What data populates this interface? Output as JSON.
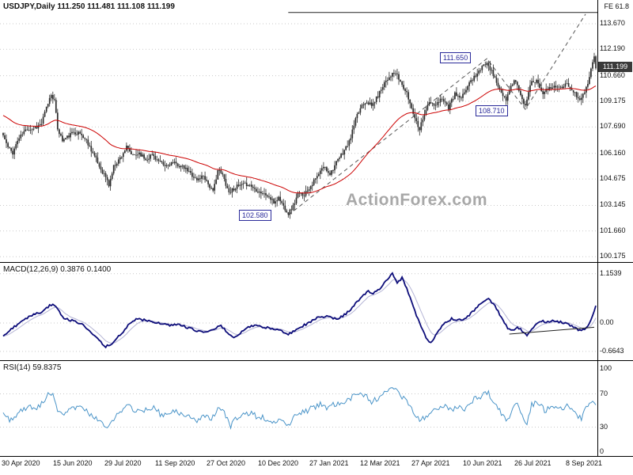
{
  "header": {
    "text": "USDJPY,Daily 111.250 111.481 111.108 111.199"
  },
  "annotations": {
    "fe_label": "FE 61.8",
    "peak_label": "111.650",
    "aug_low_label": "108.710",
    "jan_low_label": "102.580",
    "current_price": "111.199",
    "watermark": "ActionForex.com"
  },
  "indicators": {
    "macd_label": "MACD(12,26,9) 0.3876 0.1400",
    "rsi_label": "RSI(14) 59.8375"
  },
  "axes": {
    "price": [
      "113.670",
      "112.190",
      "110.660",
      "109.175",
      "107.690",
      "106.160",
      "104.675",
      "103.145",
      "101.660",
      "100.175"
    ],
    "macd": [
      "1.1539",
      "0.00",
      "-0.6643"
    ],
    "rsi": [
      "100",
      "70",
      "30",
      "0"
    ],
    "dates": [
      "30 Apr 2020",
      "15 Jun 2020",
      "29 Jul 2020",
      "11 Sep 2020",
      "27 Oct 2020",
      "10 Dec 2020",
      "27 Jan 2021",
      "12 Mar 2021",
      "27 Apr 2021",
      "10 Jun 2021",
      "26 Jul 2021",
      "8 Sep 2021"
    ]
  },
  "colors": {
    "candle": "#2b2b2b",
    "ma": "#cc0000",
    "macd_main": "#0d0d7a",
    "macd_signal": "#b5b5d5",
    "rsi_line": "#4a94c8",
    "grid": "#c9c9c9",
    "annotation": "#2a2a9a",
    "price_tag_bg": "#3a3a3a",
    "watermark": "#a8a8a8"
  },
  "chart_data": {
    "type": "candlestick",
    "title": "USDJPY Daily with MACD(12,26,9) and RSI(14)",
    "bars": 371,
    "x_tick_bars": [
      0,
      32,
      64,
      96,
      128,
      160,
      192,
      224,
      256,
      288,
      320,
      352
    ],
    "price_range": [
      100.175,
      113.67
    ],
    "ohlc_current": {
      "open": 111.25,
      "high": 111.481,
      "low": 111.108,
      "close": 111.199
    },
    "key_points": {
      "jan_low": {
        "bar": 178,
        "price": 102.58
      },
      "jul_high": {
        "bar": 302,
        "price": 111.65
      },
      "aug_low": {
        "bar": 326,
        "price": 108.71
      },
      "fe_level": 114.32,
      "fib_extension": "61.8"
    },
    "close_anchors": [
      [
        0,
        107.2
      ],
      [
        3,
        106.5
      ],
      [
        6,
        106.2
      ],
      [
        9,
        106.9
      ],
      [
        12,
        107.3
      ],
      [
        15,
        107.6
      ],
      [
        18,
        107.6
      ],
      [
        21,
        107.7
      ],
      [
        24,
        107.9
      ],
      [
        27,
        108.8
      ],
      [
        30,
        109.6
      ],
      [
        32,
        109.2
      ],
      [
        34,
        107.6
      ],
      [
        37,
        106.9
      ],
      [
        40,
        107.1
      ],
      [
        44,
        107.4
      ],
      [
        48,
        107.3
      ],
      [
        52,
        106.9
      ],
      [
        56,
        106.2
      ],
      [
        60,
        105.4
      ],
      [
        64,
        104.8
      ],
      [
        66,
        104.3
      ],
      [
        69,
        105.4
      ],
      [
        73,
        105.9
      ],
      [
        77,
        106.5
      ],
      [
        81,
        106.0
      ],
      [
        85,
        106.2
      ],
      [
        89,
        105.8
      ],
      [
        93,
        106.1
      ],
      [
        97,
        105.7
      ],
      [
        101,
        105.4
      ],
      [
        105,
        105.6
      ],
      [
        109,
        105.5
      ],
      [
        113,
        105.3
      ],
      [
        117,
        105.0
      ],
      [
        121,
        104.6
      ],
      [
        125,
        104.9
      ],
      [
        128,
        104.4
      ],
      [
        131,
        103.9
      ],
      [
        134,
        105.2
      ],
      [
        137,
        104.9
      ],
      [
        141,
        103.9
      ],
      [
        145,
        104.2
      ],
      [
        149,
        104.3
      ],
      [
        153,
        104.4
      ],
      [
        157,
        104.1
      ],
      [
        161,
        103.9
      ],
      [
        165,
        103.7
      ],
      [
        169,
        103.3
      ],
      [
        172,
        103.6
      ],
      [
        175,
        103.1
      ],
      [
        178,
        102.7
      ],
      [
        181,
        103.1
      ],
      [
        184,
        103.8
      ],
      [
        188,
        103.8
      ],
      [
        192,
        104.3
      ],
      [
        196,
        104.8
      ],
      [
        200,
        105.4
      ],
      [
        204,
        105.0
      ],
      [
        208,
        105.6
      ],
      [
        212,
        106.2
      ],
      [
        216,
        106.8
      ],
      [
        220,
        108.1
      ],
      [
        224,
        109.0
      ],
      [
        227,
        109.2
      ],
      [
        230,
        108.9
      ],
      [
        234,
        109.5
      ],
      [
        238,
        110.3
      ],
      [
        242,
        110.7
      ],
      [
        245,
        110.8
      ],
      [
        248,
        110.3
      ],
      [
        252,
        109.6
      ],
      [
        255,
        108.8
      ],
      [
        258,
        108.0
      ],
      [
        260,
        107.6
      ],
      [
        263,
        108.5
      ],
      [
        266,
        109.1
      ],
      [
        270,
        108.9
      ],
      [
        274,
        109.4
      ],
      [
        278,
        108.8
      ],
      [
        282,
        109.6
      ],
      [
        286,
        109.3
      ],
      [
        290,
        110.1
      ],
      [
        294,
        110.6
      ],
      [
        298,
        111.0
      ],
      [
        302,
        111.5
      ],
      [
        305,
        110.9
      ],
      [
        308,
        110.3
      ],
      [
        311,
        109.6
      ],
      [
        314,
        109.2
      ],
      [
        317,
        110.1
      ],
      [
        320,
        110.4
      ],
      [
        323,
        109.5
      ],
      [
        326,
        108.9
      ],
      [
        329,
        110.2
      ],
      [
        333,
        110.4
      ],
      [
        337,
        109.7
      ],
      [
        341,
        109.9
      ],
      [
        345,
        110.1
      ],
      [
        349,
        109.9
      ],
      [
        352,
        110.2
      ],
      [
        355,
        109.9
      ],
      [
        358,
        109.5
      ],
      [
        361,
        109.3
      ],
      [
        363,
        109.8
      ],
      [
        365,
        110.3
      ],
      [
        367,
        111.0
      ],
      [
        369,
        111.9
      ],
      [
        370,
        111.2
      ]
    ],
    "macd": {
      "current": 0.3876,
      "signal": 0.14,
      "max": 1.1539,
      "min": -0.6643,
      "trendline": {
        "bar1": 316,
        "v1": -0.26,
        "bar2": 369,
        "v2": -0.1
      },
      "anchors": [
        [
          0,
          -0.3
        ],
        [
          6,
          -0.12
        ],
        [
          12,
          0.05
        ],
        [
          18,
          0.18
        ],
        [
          24,
          0.26
        ],
        [
          28,
          0.38
        ],
        [
          31,
          0.45
        ],
        [
          34,
          0.32
        ],
        [
          38,
          0.12
        ],
        [
          44,
          0.04
        ],
        [
          50,
          -0.05
        ],
        [
          56,
          -0.28
        ],
        [
          61,
          -0.45
        ],
        [
          64,
          -0.55
        ],
        [
          68,
          -0.48
        ],
        [
          73,
          -0.28
        ],
        [
          78,
          -0.06
        ],
        [
          83,
          0.1
        ],
        [
          88,
          0.07
        ],
        [
          93,
          0.04
        ],
        [
          98,
          -0.02
        ],
        [
          104,
          -0.06
        ],
        [
          110,
          -0.03
        ],
        [
          116,
          -0.12
        ],
        [
          122,
          -0.2
        ],
        [
          128,
          -0.22
        ],
        [
          132,
          -0.12
        ],
        [
          136,
          -0.06
        ],
        [
          140,
          -0.22
        ],
        [
          143,
          -0.34
        ],
        [
          147,
          -0.26
        ],
        [
          152,
          -0.12
        ],
        [
          157,
          -0.05
        ],
        [
          162,
          -0.1
        ],
        [
          168,
          -0.13
        ],
        [
          173,
          -0.17
        ],
        [
          178,
          -0.27
        ],
        [
          183,
          -0.16
        ],
        [
          188,
          -0.05
        ],
        [
          193,
          0.06
        ],
        [
          198,
          0.16
        ],
        [
          203,
          0.14
        ],
        [
          208,
          0.1
        ],
        [
          212,
          0.16
        ],
        [
          216,
          0.28
        ],
        [
          220,
          0.45
        ],
        [
          224,
          0.62
        ],
        [
          228,
          0.74
        ],
        [
          231,
          0.68
        ],
        [
          235,
          0.8
        ],
        [
          239,
          1.0
        ],
        [
          243,
          1.15
        ],
        [
          246,
          0.95
        ],
        [
          249,
          1.05
        ],
        [
          252,
          0.82
        ],
        [
          255,
          0.48
        ],
        [
          258,
          0.18
        ],
        [
          261,
          -0.1
        ],
        [
          264,
          -0.35
        ],
        [
          267,
          -0.46
        ],
        [
          270,
          -0.3
        ],
        [
          273,
          -0.12
        ],
        [
          276,
          0.02
        ],
        [
          280,
          0.1
        ],
        [
          284,
          0.06
        ],
        [
          288,
          0.09
        ],
        [
          292,
          0.22
        ],
        [
          296,
          0.38
        ],
        [
          300,
          0.5
        ],
        [
          303,
          0.55
        ],
        [
          306,
          0.45
        ],
        [
          309,
          0.28
        ],
        [
          312,
          0.05
        ],
        [
          315,
          -0.12
        ],
        [
          318,
          -0.16
        ],
        [
          321,
          -0.1
        ],
        [
          324,
          -0.18
        ],
        [
          327,
          -0.28
        ],
        [
          330,
          -0.16
        ],
        [
          333,
          -0.04
        ],
        [
          336,
          0.04
        ],
        [
          340,
          0.02
        ],
        [
          344,
          0.06
        ],
        [
          348,
          0.02
        ],
        [
          352,
          -0.02
        ],
        [
          355,
          -0.08
        ],
        [
          358,
          -0.14
        ],
        [
          361,
          -0.18
        ],
        [
          364,
          -0.12
        ],
        [
          366,
          0.0
        ],
        [
          368,
          0.18
        ],
        [
          370,
          0.39
        ]
      ]
    },
    "rsi": {
      "current": 59.8375,
      "overbought": 70,
      "oversold": 30,
      "anchors": [
        [
          0,
          46
        ],
        [
          4,
          38
        ],
        [
          8,
          44
        ],
        [
          12,
          52
        ],
        [
          16,
          54
        ],
        [
          20,
          53
        ],
        [
          24,
          58
        ],
        [
          28,
          68
        ],
        [
          31,
          72
        ],
        [
          34,
          46
        ],
        [
          38,
          47
        ],
        [
          42,
          52
        ],
        [
          46,
          55
        ],
        [
          50,
          51
        ],
        [
          54,
          46
        ],
        [
          58,
          41
        ],
        [
          62,
          34
        ],
        [
          66,
          30
        ],
        [
          70,
          44
        ],
        [
          74,
          50
        ],
        [
          78,
          57
        ],
        [
          82,
          50
        ],
        [
          86,
          53
        ],
        [
          90,
          49
        ],
        [
          94,
          53
        ],
        [
          98,
          46
        ],
        [
          102,
          45
        ],
        [
          106,
          50
        ],
        [
          110,
          47
        ],
        [
          114,
          45
        ],
        [
          118,
          41
        ],
        [
          122,
          38
        ],
        [
          126,
          43
        ],
        [
          130,
          37
        ],
        [
          134,
          55
        ],
        [
          138,
          46
        ],
        [
          142,
          31
        ],
        [
          146,
          42
        ],
        [
          150,
          45
        ],
        [
          154,
          47
        ],
        [
          158,
          43
        ],
        [
          162,
          42
        ],
        [
          166,
          39
        ],
        [
          170,
          35
        ],
        [
          174,
          39
        ],
        [
          178,
          30
        ],
        [
          182,
          42
        ],
        [
          186,
          48
        ],
        [
          190,
          50
        ],
        [
          194,
          54
        ],
        [
          198,
          58
        ],
        [
          202,
          52
        ],
        [
          206,
          57
        ],
        [
          210,
          60
        ],
        [
          214,
          62
        ],
        [
          218,
          66
        ],
        [
          222,
          70
        ],
        [
          226,
          68
        ],
        [
          230,
          60
        ],
        [
          234,
          65
        ],
        [
          238,
          71
        ],
        [
          242,
          75
        ],
        [
          245,
          78
        ],
        [
          248,
          68
        ],
        [
          252,
          60
        ],
        [
          256,
          48
        ],
        [
          260,
          38
        ],
        [
          264,
          42
        ],
        [
          268,
          50
        ],
        [
          272,
          54
        ],
        [
          276,
          57
        ],
        [
          280,
          50
        ],
        [
          284,
          55
        ],
        [
          288,
          52
        ],
        [
          292,
          61
        ],
        [
          296,
          65
        ],
        [
          300,
          69
        ],
        [
          303,
          72
        ],
        [
          306,
          60
        ],
        [
          309,
          52
        ],
        [
          312,
          43
        ],
        [
          315,
          38
        ],
        [
          318,
          54
        ],
        [
          321,
          57
        ],
        [
          324,
          42
        ],
        [
          327,
          36
        ],
        [
          330,
          57
        ],
        [
          334,
          60
        ],
        [
          338,
          50
        ],
        [
          342,
          54
        ],
        [
          346,
          56
        ],
        [
          350,
          52
        ],
        [
          352,
          56
        ],
        [
          355,
          50
        ],
        [
          358,
          44
        ],
        [
          361,
          41
        ],
        [
          364,
          52
        ],
        [
          366,
          56
        ],
        [
          368,
          62
        ],
        [
          370,
          60
        ]
      ]
    }
  }
}
